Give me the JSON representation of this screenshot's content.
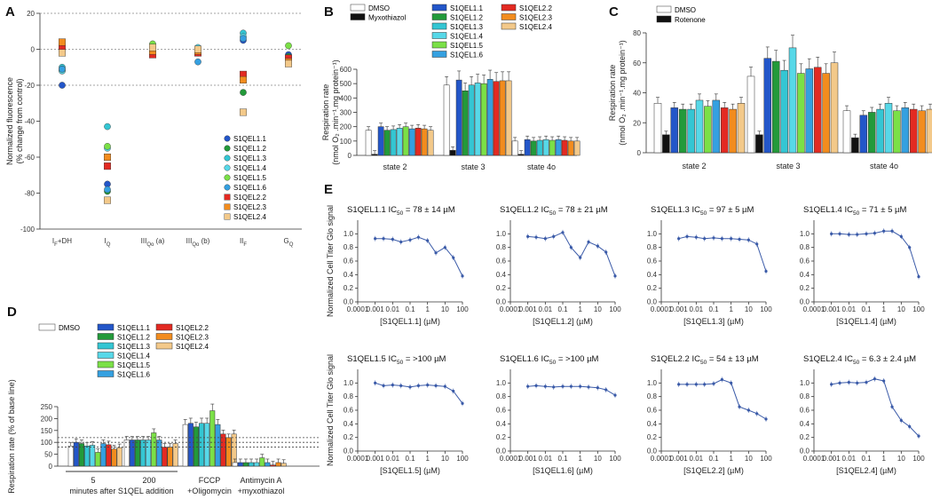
{
  "colors": {
    "S1QEL1.1": "#2356c9",
    "S1QEL1.2": "#239a3a",
    "S1QEL1.3": "#34c6d3",
    "S1QEL1.4": "#57d8e8",
    "S1QEL1.5": "#7be047",
    "S1QEL1.6": "#35a0e0",
    "S1QEL2.2": "#e32a22",
    "S1QEL2.3": "#f28c1e",
    "S1QEL2.4": "#f3c98a",
    "DMSO": "#ffffff",
    "Myxothiazol": "#111111",
    "Rotenone": "#111111",
    "curve": "#3a5aa8"
  },
  "panels": {
    "A": "A",
    "B": "B",
    "C": "C",
    "D": "D",
    "E": "E"
  },
  "chart_data": [
    {
      "id": "A",
      "type": "scatter",
      "ylabel": "Normalized fluorescence (% change from control)",
      "ylim": [
        -100,
        20
      ],
      "yticks": [
        "20",
        "0",
        "-20",
        "-40",
        "-60",
        "-80",
        "-100"
      ],
      "categories": [
        "IF+DH",
        "IQ",
        "IIIQo (a)",
        "IIIQo (b)",
        "IIF",
        "GQ"
      ],
      "category_labels": [
        {
          "main": "I",
          "sub": "F",
          "suffix": "+DH"
        },
        {
          "main": "I",
          "sub": "Q",
          "suffix": ""
        },
        {
          "main": "III",
          "sub": "Qo",
          "suffix": " (a)"
        },
        {
          "main": "III",
          "sub": "Qo",
          "suffix": " (b)"
        },
        {
          "main": "II",
          "sub": "F",
          "suffix": ""
        },
        {
          "main": "G",
          "sub": "Q",
          "suffix": ""
        }
      ],
      "reference_lines": [
        20,
        0,
        -20
      ],
      "legend_position": "bottom-right",
      "series": [
        {
          "name": "S1QEL1.1",
          "marker": "circle",
          "values": [
            -20,
            -75,
            1,
            -2,
            5,
            -3
          ]
        },
        {
          "name": "S1QEL1.2",
          "marker": "circle",
          "values": [
            -12,
            -79,
            2,
            -1,
            -24,
            -4
          ]
        },
        {
          "name": "S1QEL1.3",
          "marker": "circle",
          "values": [
            -10,
            -43,
            1,
            0,
            9,
            -5
          ]
        },
        {
          "name": "S1QEL1.4",
          "marker": "circle",
          "values": [
            -12,
            -55,
            2,
            1,
            7,
            -8
          ]
        },
        {
          "name": "S1QEL1.5",
          "marker": "circle",
          "values": [
            -11,
            -54,
            3,
            -2,
            -17,
            2
          ]
        },
        {
          "name": "S1QEL1.6",
          "marker": "circle",
          "values": [
            -11,
            -78,
            0,
            -7,
            6,
            -6
          ]
        },
        {
          "name": "S1QEL2.2",
          "marker": "square",
          "values": [
            1,
            -65,
            -3,
            -2,
            -14,
            -5
          ]
        },
        {
          "name": "S1QEL2.3",
          "marker": "square",
          "values": [
            4,
            -60,
            -1,
            -1,
            -17,
            -7
          ]
        },
        {
          "name": "S1QEL2.4",
          "marker": "square",
          "values": [
            -2,
            -84,
            1,
            0,
            -35,
            -8
          ]
        }
      ]
    },
    {
      "id": "B",
      "type": "bar",
      "ylabel": "Respiration rate (nmol O2 .min-1.mg protein-1)",
      "ylim": [
        0,
        600
      ],
      "yticks": [
        "0",
        "100",
        "200",
        "300",
        "400",
        "500",
        "600"
      ],
      "groups": [
        "state 2",
        "state 3",
        "state 4o"
      ],
      "series": [
        {
          "name": "DMSO",
          "values": [
            175,
            490,
            100
          ]
        },
        {
          "name": "Myxothiazol",
          "values": [
            8,
            35,
            8
          ]
        },
        {
          "name": "S1QEL1.1",
          "values": [
            200,
            525,
            110
          ]
        },
        {
          "name": "S1QEL1.2",
          "values": [
            175,
            450,
            100
          ]
        },
        {
          "name": "S1QEL1.3",
          "values": [
            180,
            490,
            105
          ]
        },
        {
          "name": "S1QEL1.4",
          "values": [
            190,
            505,
            110
          ]
        },
        {
          "name": "S1QEL1.5",
          "values": [
            200,
            500,
            105
          ]
        },
        {
          "name": "S1QEL1.6",
          "values": [
            185,
            530,
            110
          ]
        },
        {
          "name": "S1QEL2.2",
          "values": [
            190,
            515,
            105
          ]
        },
        {
          "name": "S1QEL2.3",
          "values": [
            185,
            520,
            100
          ]
        },
        {
          "name": "S1QEL2.4",
          "values": [
            175,
            520,
            100
          ]
        }
      ],
      "legend": [
        [
          "DMSO",
          "Myxothiazol"
        ],
        [
          "S1QEL1.1",
          "S1QEL1.2",
          "S1QEL1.3",
          "S1QEL1.4",
          "S1QEL1.5",
          "S1QEL1.6"
        ],
        [
          "S1QEL2.2",
          "S1QEL2.3",
          "S1QEL2.4"
        ]
      ]
    },
    {
      "id": "C",
      "type": "bar",
      "ylabel": "Respiration rate (nmol O2 .min-1.mg protein-1)",
      "ylim": [
        0,
        80
      ],
      "yticks": [
        "0",
        "20",
        "40",
        "60",
        "80"
      ],
      "groups": [
        "state 2",
        "state 3",
        "state 4o"
      ],
      "series": [
        {
          "name": "DMSO",
          "values": [
            33,
            51,
            28
          ]
        },
        {
          "name": "Rotenone",
          "values": [
            12,
            12,
            10
          ]
        },
        {
          "name": "S1QEL1.1",
          "values": [
            30,
            63,
            25
          ]
        },
        {
          "name": "S1QEL1.2",
          "values": [
            29,
            61,
            27
          ]
        },
        {
          "name": "S1QEL1.3",
          "values": [
            29,
            55,
            29
          ]
        },
        {
          "name": "S1QEL1.4",
          "values": [
            35,
            70,
            33
          ]
        },
        {
          "name": "S1QEL1.5",
          "values": [
            31,
            53,
            28
          ]
        },
        {
          "name": "S1QEL1.6",
          "values": [
            35,
            56,
            30
          ]
        },
        {
          "name": "S1QEL2.2",
          "values": [
            30,
            57,
            29
          ]
        },
        {
          "name": "S1QEL2.3",
          "values": [
            29,
            53,
            28
          ]
        },
        {
          "name": "S1QEL2.4",
          "values": [
            33,
            60,
            29
          ]
        }
      ],
      "legend": [
        [
          "DMSO",
          "Rotenone"
        ]
      ]
    },
    {
      "id": "D",
      "type": "bar",
      "ylabel": "Respiration rate (% of base line)",
      "ylim": [
        0,
        250
      ],
      "yticks": [
        "0",
        "50",
        "100",
        "150",
        "200",
        "250"
      ],
      "groups": [
        "5",
        "200",
        "FCCP +Oligomycin",
        "Antimycin A +myxothiazol"
      ],
      "group_labels": [
        [
          "5"
        ],
        [
          "200"
        ],
        [
          "FCCP",
          "+Oligomycin"
        ],
        [
          "Antimycin A",
          "+myxothiazol"
        ]
      ],
      "xcaption": "minutes after S1QEL addition",
      "reference_lines": [
        80,
        100,
        120
      ],
      "series": [
        {
          "name": "DMSO",
          "values": [
            85,
            110,
            175,
            15
          ]
        },
        {
          "name": "S1QEL1.1",
          "values": [
            100,
            110,
            180,
            15
          ]
        },
        {
          "name": "S1QEL1.2",
          "values": [
            95,
            110,
            165,
            15
          ]
        },
        {
          "name": "S1QEL1.3",
          "values": [
            85,
            110,
            180,
            15
          ]
        },
        {
          "name": "S1QEL1.4",
          "values": [
            88,
            110,
            180,
            15
          ]
        },
        {
          "name": "S1QEL1.5",
          "values": [
            58,
            140,
            233,
            35
          ]
        },
        {
          "name": "S1QEL1.6",
          "values": [
            95,
            110,
            175,
            15
          ]
        },
        {
          "name": "S1QEL2.2",
          "values": [
            90,
            80,
            135,
            5
          ]
        },
        {
          "name": "S1QEL2.3",
          "values": [
            72,
            80,
            120,
            15
          ]
        },
        {
          "name": "S1QEL2.4",
          "values": [
            78,
            95,
            135,
            12
          ]
        }
      ],
      "legend": [
        [
          "DMSO"
        ],
        [
          "S1QEL1.1",
          "S1QEL1.2",
          "S1QEL1.3",
          "S1QEL1.4",
          "S1QEL1.5",
          "S1QEL1.6"
        ],
        [
          "S1QEL2.2",
          "S1QEL2.3",
          "S1QEL2.4"
        ]
      ]
    },
    {
      "id": "E",
      "type": "line",
      "ylabel": "Normalized Cell Titer Glo signal",
      "xscale": "log",
      "xlim": [
        0.0001,
        100
      ],
      "ylim": [
        0,
        1.2
      ],
      "xticks": [
        "0.0001",
        "0.001",
        "0.01",
        "0.1",
        "1",
        "10",
        "100"
      ],
      "yticks": [
        "0.0",
        "0.2",
        "0.4",
        "0.6",
        "0.8",
        "1.0"
      ],
      "x": [
        0.001,
        0.003,
        0.01,
        0.03,
        0.1,
        0.3,
        1,
        3,
        10,
        30,
        100
      ],
      "plots": [
        {
          "name": "S1QEL1.1",
          "ic50": "IC50 = 78 ± 14 µM",
          "xlabel": "[S1QEL1.1] (µM)",
          "values": [
            0.93,
            0.93,
            0.92,
            0.88,
            0.91,
            0.95,
            0.9,
            0.72,
            0.8,
            0.65,
            0.38
          ]
        },
        {
          "name": "S1QEL1.2",
          "ic50": "IC50 = 78 ± 21 µM",
          "xlabel": "[S1QEL1.2] (µM)",
          "values": [
            0.96,
            0.95,
            0.93,
            0.96,
            1.02,
            0.8,
            0.65,
            0.88,
            0.82,
            0.73,
            0.38
          ]
        },
        {
          "name": "S1QEL1.3",
          "ic50": "IC50 = 97 ± 5 µM",
          "xlabel": "[S1QEL1.3] (µM)",
          "values": [
            0.93,
            0.96,
            0.95,
            0.93,
            0.94,
            0.93,
            0.93,
            0.92,
            0.91,
            0.85,
            0.45
          ]
        },
        {
          "name": "S1QEL1.4",
          "ic50": "IC50 = 71 ± 5 µM",
          "xlabel": "[S1QEL1.4] (µM)",
          "values": [
            1.0,
            1.0,
            0.99,
            0.99,
            1.0,
            1.01,
            1.04,
            1.04,
            0.96,
            0.8,
            0.37
          ]
        },
        {
          "name": "S1QEL1.5",
          "ic50": "IC50 = >100 µM",
          "xlabel": "[S1QEL1.5] (µM)",
          "values": [
            1.0,
            0.96,
            0.97,
            0.96,
            0.94,
            0.96,
            0.97,
            0.96,
            0.95,
            0.88,
            0.7
          ]
        },
        {
          "name": "S1QEL1.6",
          "ic50": "IC50 = >100 µM",
          "xlabel": "[S1QEL1.6] (µM)",
          "values": [
            0.95,
            0.96,
            0.95,
            0.94,
            0.95,
            0.95,
            0.95,
            0.94,
            0.93,
            0.9,
            0.82
          ]
        },
        {
          "name": "S1QEL2.2",
          "ic50": "IC50 = 54 ± 13 µM",
          "xlabel": "[S1QEL2.2] (µM)",
          "values": [
            0.98,
            0.98,
            0.98,
            0.98,
            0.99,
            1.05,
            1.0,
            0.65,
            0.6,
            0.55,
            0.47
          ]
        },
        {
          "name": "S1QEL2.4",
          "ic50": "IC50 = 6.3 ± 2.4 µM",
          "xlabel": "[S1QEL2.4] (µM)",
          "values": [
            0.98,
            1.0,
            1.01,
            1.0,
            1.01,
            1.06,
            1.03,
            0.65,
            0.45,
            0.36,
            0.22
          ]
        }
      ]
    }
  ]
}
